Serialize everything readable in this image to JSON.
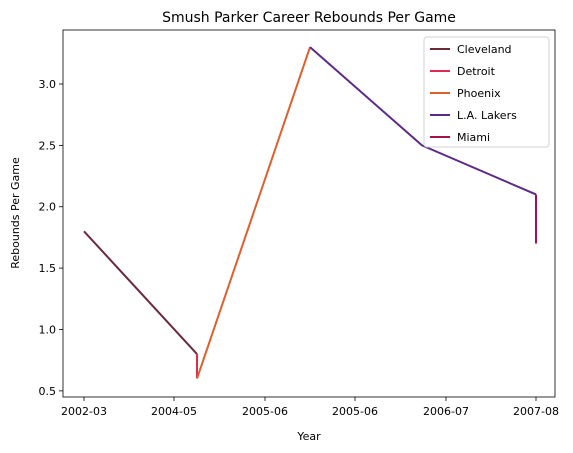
{
  "chart_data": {
    "type": "line",
    "title": "Smush Parker Career Rebounds Per Game",
    "xlabel": "Year",
    "ylabel": "Rebounds Per Game",
    "x_ticks": [
      "2002-03",
      "2004-05",
      "2005-06",
      "2005-06",
      "2006-07",
      "2007-08"
    ],
    "y_ticks": [
      "0.5",
      "1.0",
      "1.5",
      "2.0",
      "2.5",
      "3.0"
    ],
    "ylim": [
      0.45,
      3.44
    ],
    "legend_position": "top-right",
    "series": [
      {
        "name": "Cleveland",
        "color": "#6b2a3b",
        "points": [
          [
            0,
            1.8
          ],
          [
            1,
            0.8
          ]
        ]
      },
      {
        "name": "Detroit",
        "color": "#e0294f",
        "points": [
          [
            1,
            0.8
          ],
          [
            1,
            0.6
          ]
        ]
      },
      {
        "name": "Phoenix",
        "color": "#e05f2b",
        "points": [
          [
            1,
            0.6
          ],
          [
            2,
            3.3
          ]
        ]
      },
      {
        "name": "L.A. Lakers",
        "color": "#5b2a8a",
        "points": [
          [
            2,
            3.3
          ],
          [
            3,
            2.5
          ],
          [
            4,
            2.1
          ]
        ]
      },
      {
        "name": "Miami",
        "color": "#a3124a",
        "points": [
          [
            4,
            2.1
          ],
          [
            4,
            1.7
          ]
        ]
      }
    ]
  }
}
